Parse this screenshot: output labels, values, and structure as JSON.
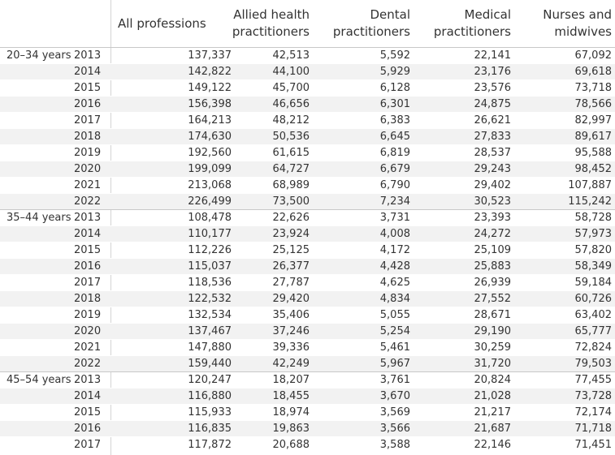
{
  "chart_data": {
    "type": "table",
    "columns": [
      "All professions",
      "Allied health practitioners",
      "Dental practitioners",
      "Medical practitioners",
      "Nurses and midwives"
    ],
    "column_labels": [
      "All professions",
      "Allied health\npractitioners",
      "Dental\npractitioners",
      "Medical\npractitioners",
      "Nurses and\nmidwives"
    ],
    "groups": [
      {
        "age": "20–34 years",
        "rows": [
          {
            "year": "2013",
            "values": [
              "137,337",
              "42,513",
              "5,592",
              "22,141",
              "67,092"
            ]
          },
          {
            "year": "2014",
            "values": [
              "142,822",
              "44,100",
              "5,929",
              "23,176",
              "69,618"
            ]
          },
          {
            "year": "2015",
            "values": [
              "149,122",
              "45,700",
              "6,128",
              "23,576",
              "73,718"
            ]
          },
          {
            "year": "2016",
            "values": [
              "156,398",
              "46,656",
              "6,301",
              "24,875",
              "78,566"
            ]
          },
          {
            "year": "2017",
            "values": [
              "164,213",
              "48,212",
              "6,383",
              "26,621",
              "82,997"
            ]
          },
          {
            "year": "2018",
            "values": [
              "174,630",
              "50,536",
              "6,645",
              "27,833",
              "89,617"
            ]
          },
          {
            "year": "2019",
            "values": [
              "192,560",
              "61,615",
              "6,819",
              "28,537",
              "95,588"
            ]
          },
          {
            "year": "2020",
            "values": [
              "199,099",
              "64,727",
              "6,679",
              "29,243",
              "98,452"
            ]
          },
          {
            "year": "2021",
            "values": [
              "213,068",
              "68,989",
              "6,790",
              "29,402",
              "107,887"
            ]
          },
          {
            "year": "2022",
            "values": [
              "226,499",
              "73,500",
              "7,234",
              "30,523",
              "115,242"
            ]
          }
        ]
      },
      {
        "age": "35–44 years",
        "rows": [
          {
            "year": "2013",
            "values": [
              "108,478",
              "22,626",
              "3,731",
              "23,393",
              "58,728"
            ]
          },
          {
            "year": "2014",
            "values": [
              "110,177",
              "23,924",
              "4,008",
              "24,272",
              "57,973"
            ]
          },
          {
            "year": "2015",
            "values": [
              "112,226",
              "25,125",
              "4,172",
              "25,109",
              "57,820"
            ]
          },
          {
            "year": "2016",
            "values": [
              "115,037",
              "26,377",
              "4,428",
              "25,883",
              "58,349"
            ]
          },
          {
            "year": "2017",
            "values": [
              "118,536",
              "27,787",
              "4,625",
              "26,939",
              "59,184"
            ]
          },
          {
            "year": "2018",
            "values": [
              "122,532",
              "29,420",
              "4,834",
              "27,552",
              "60,726"
            ]
          },
          {
            "year": "2019",
            "values": [
              "132,534",
              "35,406",
              "5,055",
              "28,671",
              "63,402"
            ]
          },
          {
            "year": "2020",
            "values": [
              "137,467",
              "37,246",
              "5,254",
              "29,190",
              "65,777"
            ]
          },
          {
            "year": "2021",
            "values": [
              "147,880",
              "39,336",
              "5,461",
              "30,259",
              "72,824"
            ]
          },
          {
            "year": "2022",
            "values": [
              "159,440",
              "42,249",
              "5,967",
              "31,720",
              "79,503"
            ]
          }
        ]
      },
      {
        "age": "45–54 years",
        "rows": [
          {
            "year": "2013",
            "values": [
              "120,247",
              "18,207",
              "3,761",
              "20,824",
              "77,455"
            ]
          },
          {
            "year": "2014",
            "values": [
              "116,880",
              "18,455",
              "3,670",
              "21,028",
              "73,728"
            ]
          },
          {
            "year": "2015",
            "values": [
              "115,933",
              "18,974",
              "3,569",
              "21,217",
              "72,174"
            ]
          },
          {
            "year": "2016",
            "values": [
              "116,835",
              "19,863",
              "3,566",
              "21,687",
              "71,718"
            ]
          },
          {
            "year": "2017",
            "values": [
              "117,872",
              "20,688",
              "3,588",
              "22,146",
              "71,451"
            ]
          }
        ]
      }
    ]
  }
}
